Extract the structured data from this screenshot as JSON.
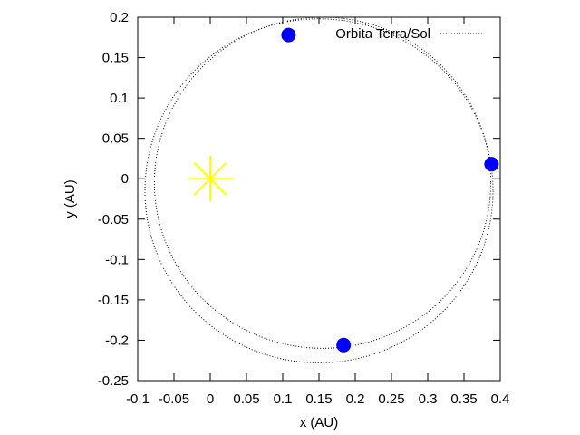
{
  "chart_data": {
    "type": "scatter",
    "title": "",
    "xlabel": "x (AU)",
    "ylabel": "y (AU)",
    "xlim": [
      -0.1,
      0.4
    ],
    "ylim": [
      -0.25,
      0.2
    ],
    "xticks": [
      -0.1,
      -0.05,
      0,
      0.05,
      0.1,
      0.15,
      0.2,
      0.25,
      0.3,
      0.35,
      0.4
    ],
    "xtick_labels": [
      "-0.1",
      "-0.05",
      "0",
      "0.05",
      "0.1",
      "0.15",
      "0.2",
      "0.25",
      "0.3",
      "0.35",
      "0.4"
    ],
    "yticks": [
      -0.25,
      -0.2,
      -0.15,
      -0.1,
      -0.05,
      0,
      0.05,
      0.1,
      0.15,
      0.2
    ],
    "ytick_labels": [
      "-0.25",
      "-0.2",
      "-0.15",
      "-0.1",
      "-0.05",
      "0",
      "0.05",
      "0.1",
      "0.15",
      "0.2"
    ],
    "grid": false,
    "legend_position": "top-right",
    "series": [
      {
        "name": "Orbita Terra/Sol",
        "style": "dotted-line",
        "color": "#000000",
        "orbit_loops": [
          {
            "cx": 0.15,
            "cy": -0.015,
            "rx": 0.24,
            "ry": 0.213
          },
          {
            "cx": 0.155,
            "cy": -0.005,
            "rx": 0.232,
            "ry": 0.205
          }
        ]
      }
    ],
    "bodies": [
      {
        "x": 0.108,
        "y": 0.178,
        "color": "#0000ff"
      },
      {
        "x": 0.388,
        "y": 0.018,
        "color": "#0000ff"
      },
      {
        "x": 0.184,
        "y": -0.206,
        "color": "#0000ff"
      }
    ],
    "sun": {
      "x": 0,
      "y": 0,
      "color": "#ffff00"
    }
  }
}
